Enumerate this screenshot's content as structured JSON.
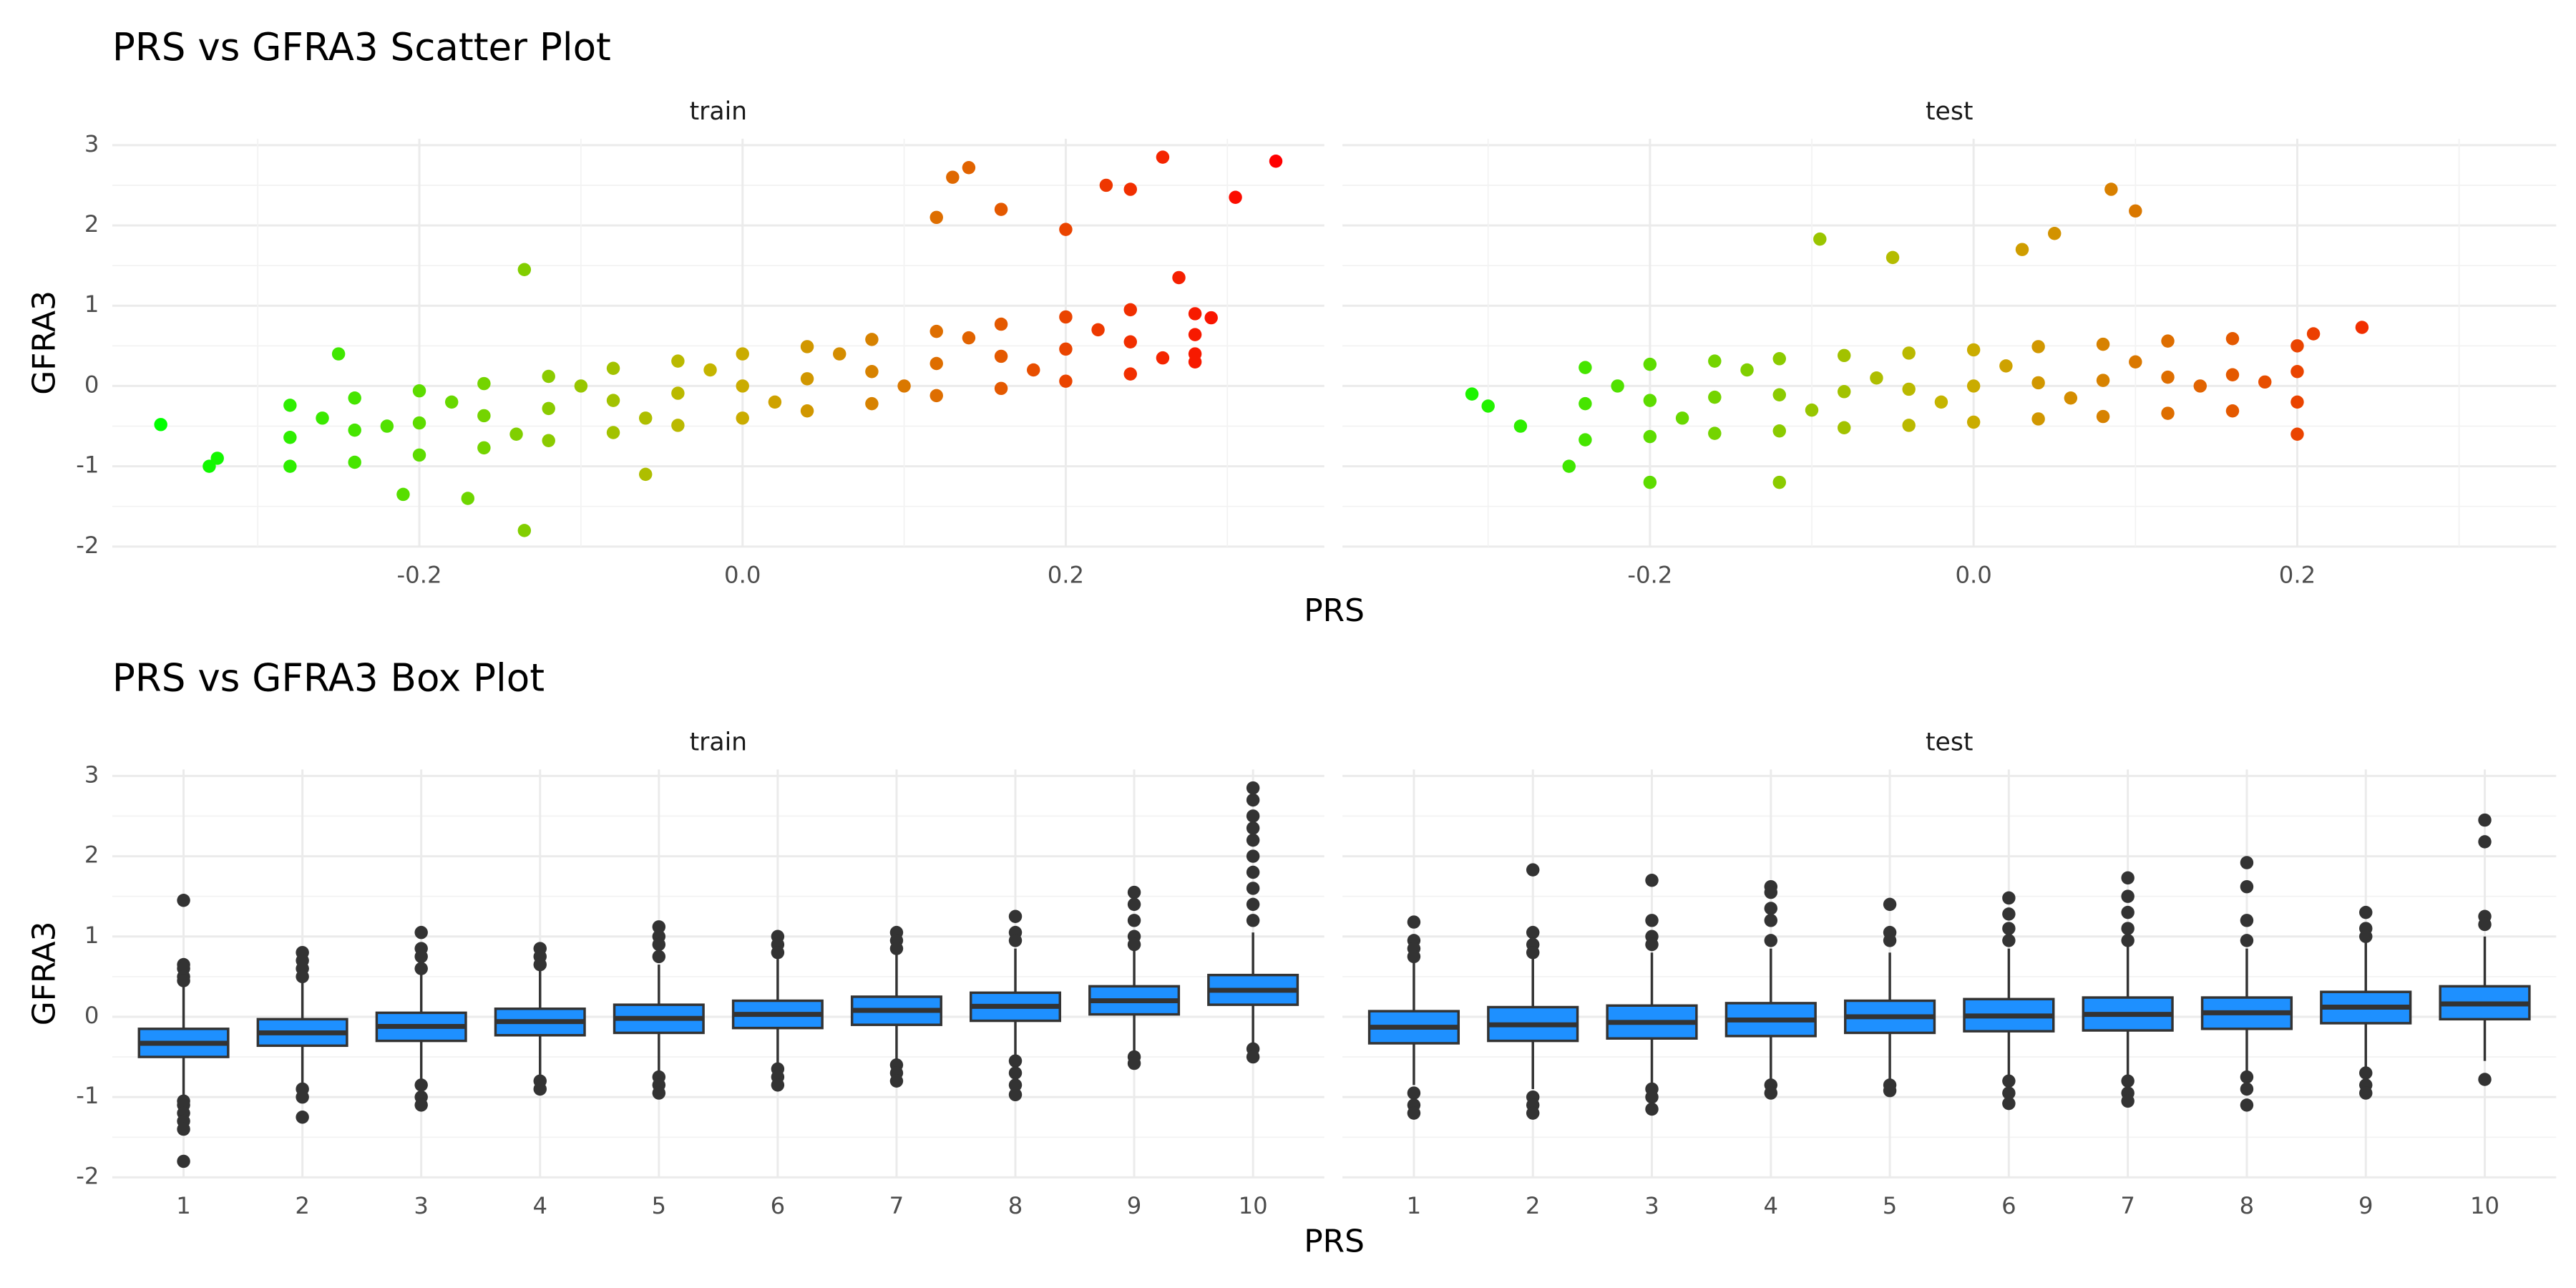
{
  "chart_data": [
    {
      "type": "scatter",
      "title": "PRS vs GFRA3 Scatter Plot",
      "x_label": "PRS",
      "y_label": "GFRA3",
      "xlim": [
        -0.39,
        0.36
      ],
      "xticks": [
        -0.2,
        {
          "value": 0,
          "label": "0.0"
        },
        0.2
      ],
      "minor_xticks": [
        -0.3,
        -0.1,
        0.1,
        0.3
      ],
      "ylim": [
        -2.0,
        3.08
      ],
      "yticks": [
        -2,
        -1,
        0,
        1,
        2,
        3
      ],
      "minor_yticks": [
        -1.5,
        -0.5,
        0.5,
        1.5,
        2.5
      ],
      "grid": true,
      "colors": [
        "#00ff00",
        "#c8b400",
        "#ff0000"
      ],
      "panels": [
        {
          "name": "train",
          "x": [
            -0.28,
            -0.24,
            -0.2,
            -0.16,
            -0.12,
            -0.08,
            -0.04,
            0,
            0.04,
            0.08,
            0.12,
            0.16,
            0.2,
            0.24,
            0.28,
            -0.28,
            -0.24,
            -0.2,
            -0.16,
            -0.12,
            -0.08,
            -0.04,
            0,
            0.04,
            0.08,
            0.12,
            0.16,
            0.2,
            0.24,
            0.28,
            -0.28,
            -0.24,
            -0.2,
            -0.16,
            -0.12,
            -0.08,
            -0.04,
            0,
            0.04,
            0.08,
            0.12,
            0.16,
            0.2,
            0.24,
            0.28,
            -0.26,
            -0.22,
            -0.18,
            -0.14,
            -0.1,
            -0.06,
            -0.02,
            0.02,
            0.06,
            0.1,
            0.14,
            0.18,
            0.22,
            0.26,
            -0.36,
            -0.33,
            -0.325,
            -0.135,
            -0.135,
            0.33,
            0.305,
            0.26,
            0.14,
            0.13,
            0.225,
            0.24,
            0.16,
            0.12,
            0.2,
            0.29,
            0.28,
            0.27,
            -0.21,
            -0.17,
            -0.06,
            -0.25
          ],
          "y": [
            -0.64,
            -0.55,
            -0.46,
            -0.37,
            -0.28,
            -0.18,
            -0.09,
            0,
            0.09,
            0.18,
            0.28,
            0.37,
            0.46,
            0.55,
            0.64,
            -0.24,
            -0.15,
            -0.06,
            0.03,
            0.12,
            0.22,
            0.31,
            0.4,
            0.49,
            0.58,
            0.68,
            0.77,
            0.86,
            0.95,
            0.9,
            -1.0,
            -0.95,
            -0.86,
            -0.77,
            -0.68,
            -0.58,
            -0.49,
            -0.4,
            -0.31,
            -0.22,
            -0.12,
            -0.03,
            0.06,
            0.15,
            0.3,
            -0.4,
            -0.5,
            -0.2,
            -0.6,
            0.0,
            -0.4,
            0.2,
            -0.2,
            0.4,
            0.0,
            0.6,
            0.2,
            0.7,
            0.35,
            -0.48,
            -1.0,
            -0.9,
            1.45,
            -1.8,
            2.8,
            2.35,
            2.85,
            2.72,
            2.6,
            2.5,
            2.45,
            2.2,
            2.1,
            1.95,
            0.85,
            0.4,
            1.35,
            -1.35,
            -1.4,
            -1.1,
            0.4
          ]
        },
        {
          "name": "test",
          "x": [
            -0.24,
            -0.2,
            -0.16,
            -0.12,
            -0.08,
            -0.04,
            0,
            0.04,
            0.08,
            0.12,
            0.16,
            0.2,
            -0.24,
            -0.2,
            -0.16,
            -0.12,
            -0.08,
            -0.04,
            0,
            0.04,
            0.08,
            0.12,
            0.16,
            0.2,
            -0.24,
            -0.2,
            -0.16,
            -0.12,
            -0.08,
            -0.04,
            0,
            0.04,
            0.08,
            0.12,
            0.16,
            0.2,
            -0.22,
            -0.18,
            -0.14,
            -0.1,
            -0.06,
            -0.02,
            0.02,
            0.06,
            0.1,
            0.14,
            0.18,
            -0.31,
            -0.3,
            0.24,
            0.085,
            0.1,
            0.05,
            -0.095,
            0.03,
            -0.05,
            0.2,
            -0.25,
            -0.2,
            -0.12,
            0.21,
            -0.28
          ],
          "y": [
            -0.22,
            -0.18,
            -0.14,
            -0.11,
            -0.07,
            -0.04,
            0,
            0.04,
            0.07,
            0.11,
            0.14,
            0.18,
            0.23,
            0.27,
            0.31,
            0.34,
            0.38,
            0.41,
            0.45,
            0.49,
            0.52,
            0.56,
            0.59,
            0.5,
            -0.67,
            -0.63,
            -0.59,
            -0.56,
            -0.52,
            -0.49,
            -0.45,
            -0.41,
            -0.38,
            -0.34,
            -0.31,
            -0.2,
            0.0,
            -0.4,
            0.2,
            -0.3,
            0.1,
            -0.2,
            0.25,
            -0.15,
            0.3,
            0.0,
            0.05,
            -0.1,
            -0.25,
            0.73,
            2.45,
            2.18,
            1.9,
            1.83,
            1.7,
            1.6,
            -0.6,
            -1.0,
            -1.2,
            -1.2,
            0.65,
            -0.5
          ]
        }
      ]
    },
    {
      "type": "box",
      "title": "PRS vs GFRA3 Box Plot",
      "x_label": "PRS",
      "y_label": "GFRA3",
      "categories": [
        "1",
        "2",
        "3",
        "4",
        "5",
        "6",
        "7",
        "8",
        "9",
        "10"
      ],
      "ylim": [
        -2.0,
        3.08
      ],
      "yticks": [
        -2,
        -1,
        0,
        1,
        2,
        3
      ],
      "minor_yticks": [
        -1.5,
        -0.5,
        0.5,
        1.5,
        2.5
      ],
      "grid": true,
      "color": "#1e90ff",
      "panels": [
        {
          "name": "train",
          "q1": [
            -0.5,
            -0.36,
            -0.3,
            -0.23,
            -0.2,
            -0.14,
            -0.1,
            -0.05,
            0.03,
            0.15
          ],
          "median": [
            -0.33,
            -0.2,
            -0.12,
            -0.06,
            -0.02,
            0.03,
            0.08,
            0.13,
            0.2,
            0.33
          ],
          "q3": [
            -0.15,
            -0.03,
            0.05,
            0.1,
            0.15,
            0.2,
            0.25,
            0.3,
            0.38,
            0.52
          ],
          "whisker_low": [
            -1.0,
            -0.85,
            -0.8,
            -0.72,
            -0.7,
            -0.62,
            -0.55,
            -0.5,
            -0.45,
            -0.35
          ],
          "whisker_high": [
            0.4,
            0.45,
            0.55,
            0.6,
            0.65,
            0.72,
            0.78,
            0.85,
            0.85,
            1.05
          ],
          "outliers": [
            [
              1.45,
              0.65,
              0.6,
              0.5,
              0.45,
              -1.05,
              -1.1,
              -1.2,
              -1.3,
              -1.4,
              -1.8
            ],
            [
              0.8,
              0.7,
              0.6,
              0.5,
              -0.9,
              -1.0,
              -1.25
            ],
            [
              1.05,
              0.85,
              0.75,
              0.6,
              -0.85,
              -1.0,
              -1.1
            ],
            [
              0.85,
              0.75,
              0.65,
              -0.8,
              -0.9
            ],
            [
              1.12,
              1.0,
              0.9,
              0.75,
              -0.75,
              -0.85,
              -0.95
            ],
            [
              1.0,
              0.9,
              0.8,
              -0.65,
              -0.75,
              -0.85
            ],
            [
              1.05,
              0.95,
              0.85,
              -0.6,
              -0.7,
              -0.8
            ],
            [
              1.25,
              1.05,
              0.95,
              -0.55,
              -0.7,
              -0.85,
              -0.97
            ],
            [
              1.55,
              1.4,
              1.2,
              1.0,
              0.9,
              -0.5,
              -0.58
            ],
            [
              2.85,
              2.7,
              2.5,
              2.35,
              2.2,
              2.0,
              1.8,
              1.6,
              1.4,
              1.2,
              -0.4,
              -0.5
            ]
          ]
        },
        {
          "name": "test",
          "q1": [
            -0.33,
            -0.3,
            -0.27,
            -0.24,
            -0.2,
            -0.18,
            -0.17,
            -0.15,
            -0.08,
            -0.03
          ],
          "median": [
            -0.13,
            -0.1,
            -0.07,
            -0.04,
            0,
            0.01,
            0.03,
            0.05,
            0.12,
            0.16
          ],
          "q3": [
            0.07,
            0.12,
            0.14,
            0.17,
            0.2,
            0.22,
            0.24,
            0.24,
            0.31,
            0.38
          ],
          "whisker_low": [
            -0.85,
            -0.9,
            -0.85,
            -0.8,
            -0.8,
            -0.75,
            -0.75,
            -0.72,
            -0.65,
            -0.55
          ],
          "whisker_high": [
            0.7,
            0.75,
            0.8,
            0.85,
            0.8,
            0.85,
            0.9,
            0.85,
            0.95,
            1.0
          ],
          "outliers": [
            [
              1.18,
              0.95,
              0.85,
              0.75,
              -0.95,
              -1.1,
              -1.2
            ],
            [
              1.83,
              1.05,
              0.9,
              0.8,
              -1.0,
              -1.1,
              -1.2
            ],
            [
              1.7,
              1.2,
              1.0,
              0.9,
              -0.9,
              -1.0,
              -1.15
            ],
            [
              1.62,
              1.55,
              1.35,
              1.2,
              0.95,
              -0.85,
              -0.95
            ],
            [
              1.4,
              1.05,
              0.95,
              -0.85,
              -0.92
            ],
            [
              1.48,
              1.28,
              1.1,
              0.95,
              -0.8,
              -0.95,
              -1.08
            ],
            [
              1.73,
              1.5,
              1.3,
              1.1,
              0.95,
              -0.8,
              -0.95,
              -1.05
            ],
            [
              1.92,
              1.62,
              1.2,
              0.95,
              -0.75,
              -0.9,
              -1.1
            ],
            [
              1.3,
              1.1,
              1.0,
              -0.7,
              -0.85,
              -0.95
            ],
            [
              2.45,
              2.18,
              1.25,
              1.15,
              -0.78
            ]
          ]
        }
      ]
    }
  ]
}
